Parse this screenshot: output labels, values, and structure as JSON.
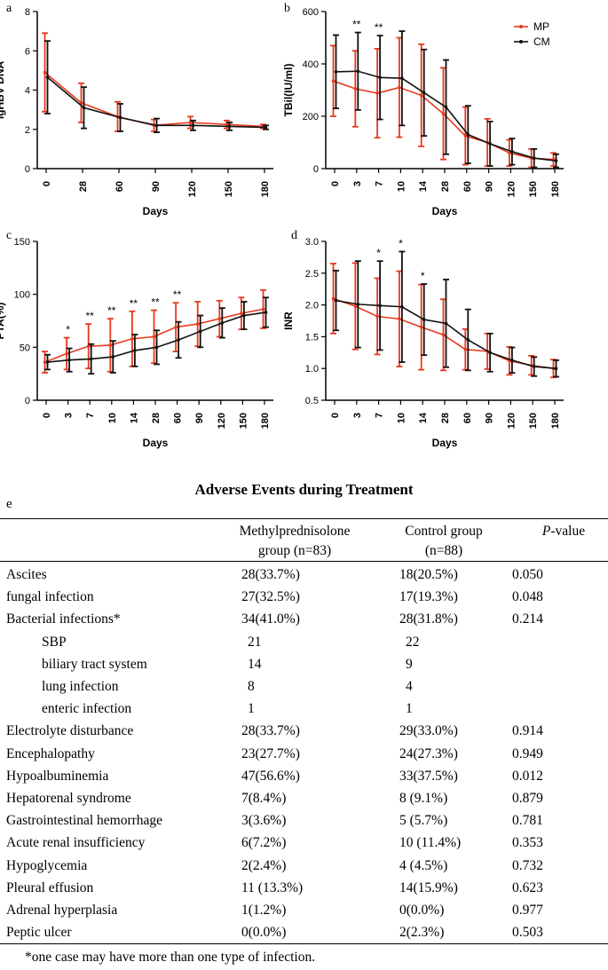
{
  "chart_data": [
    {
      "panel": "a",
      "type": "line",
      "title": "",
      "xlabel": "Days",
      "ylabel": "lgHBV DNA",
      "categories": [
        "0",
        "28",
        "60",
        "90",
        "120",
        "150",
        "180"
      ],
      "ylim": [
        0,
        8
      ],
      "yticks": [
        0,
        2,
        4,
        6,
        8
      ],
      "significance": [
        "",
        "",
        "",
        "",
        "",
        "",
        ""
      ],
      "series": [
        {
          "name": "MP",
          "color": "#e8391d",
          "values": [
            4.9,
            3.35,
            2.65,
            2.2,
            2.35,
            2.25,
            2.15
          ],
          "err": [
            2.0,
            1.0,
            0.75,
            0.3,
            0.3,
            0.2,
            0.1
          ]
        },
        {
          "name": "CM",
          "color": "#111111",
          "values": [
            4.65,
            3.1,
            2.6,
            2.2,
            2.2,
            2.15,
            2.1
          ],
          "err": [
            1.85,
            1.05,
            0.7,
            0.35,
            0.25,
            0.2,
            0.1
          ]
        }
      ]
    },
    {
      "panel": "b",
      "type": "line",
      "title": "",
      "xlabel": "Days",
      "ylabel": "TBil(IU/ml)",
      "categories": [
        "0",
        "3",
        "7",
        "10",
        "14",
        "28",
        "60",
        "90",
        "120",
        "150",
        "180"
      ],
      "ylim": [
        0,
        600
      ],
      "yticks": [
        0,
        200,
        400,
        600
      ],
      "significance": [
        "",
        "**",
        "**",
        "",
        "",
        "",
        "",
        "",
        "",
        "",
        ""
      ],
      "legend": {
        "position": "top-right",
        "entries": [
          "MP",
          "CM"
        ]
      },
      "series": [
        {
          "name": "MP",
          "color": "#e8391d",
          "values": [
            335,
            305,
            288,
            310,
            280,
            210,
            125,
            100,
            60,
            40,
            35
          ],
          "err": [
            135,
            145,
            170,
            190,
            195,
            175,
            110,
            90,
            50,
            35,
            25
          ]
        },
        {
          "name": "CM",
          "color": "#111111",
          "values": [
            370,
            372,
            348,
            345,
            290,
            235,
            130,
            95,
            65,
            40,
            30
          ],
          "err": [
            140,
            148,
            160,
            180,
            165,
            180,
            110,
            85,
            50,
            35,
            25
          ]
        }
      ]
    },
    {
      "panel": "c",
      "type": "line",
      "title": "",
      "xlabel": "Days",
      "ylabel": "PTA(%)",
      "categories": [
        "0",
        "3",
        "7",
        "10",
        "14",
        "28",
        "60",
        "90",
        "120",
        "150",
        "180"
      ],
      "ylim": [
        0,
        150
      ],
      "yticks": [
        0,
        50,
        100,
        150
      ],
      "significance": [
        "",
        "*",
        "**",
        "**",
        "**",
        "**",
        "**",
        "",
        "",
        "",
        ""
      ],
      "series": [
        {
          "name": "MP",
          "color": "#e8391d",
          "values": [
            36,
            44,
            51,
            52,
            58,
            60,
            69,
            72,
            77,
            82,
            86
          ],
          "err": [
            10,
            15,
            21,
            25,
            26,
            25,
            23,
            21,
            17,
            15,
            18
          ]
        },
        {
          "name": "CM",
          "color": "#111111",
          "values": [
            36,
            38,
            39,
            41,
            47,
            50,
            57,
            65,
            73,
            80,
            83
          ],
          "err": [
            7,
            11,
            14,
            15,
            15,
            16,
            17,
            15,
            14,
            13,
            14
          ]
        }
      ]
    },
    {
      "panel": "d",
      "type": "line",
      "title": "",
      "xlabel": "Days",
      "ylabel": "INR",
      "categories": [
        "0",
        "3",
        "7",
        "10",
        "14",
        "28",
        "60",
        "90",
        "120",
        "150",
        "180"
      ],
      "ylim": [
        0.5,
        3.0
      ],
      "yticks": [
        0.5,
        1.0,
        1.5,
        2.0,
        2.5,
        3.0
      ],
      "significance": [
        "",
        "",
        "*",
        "*",
        "*",
        "",
        "",
        "",
        "",
        "",
        ""
      ],
      "series": [
        {
          "name": "MP",
          "color": "#e8391d",
          "values": [
            2.1,
            1.98,
            1.82,
            1.78,
            1.65,
            1.53,
            1.3,
            1.27,
            1.12,
            1.05,
            1.0
          ],
          "err": [
            0.55,
            0.68,
            0.6,
            0.75,
            0.67,
            0.56,
            0.32,
            0.28,
            0.22,
            0.15,
            0.14
          ]
        },
        {
          "name": "CM",
          "color": "#111111",
          "values": [
            2.07,
            2.01,
            1.99,
            1.97,
            1.77,
            1.71,
            1.45,
            1.25,
            1.13,
            1.03,
            1.0
          ],
          "err": [
            0.47,
            0.68,
            0.7,
            0.87,
            0.56,
            0.69,
            0.48,
            0.3,
            0.2,
            0.15,
            0.13
          ]
        }
      ]
    }
  ],
  "table": {
    "panel": "e",
    "title": "Adverse Events during Treatment",
    "headers": {
      "mp_line1": "Methylprednisolone",
      "mp_line2": "group (n=83)",
      "cg_line1": "Control group",
      "cg_line2": "(n=88)",
      "p_prefix": "P",
      "p_suffix": "-value"
    },
    "rows": [
      {
        "label": "Ascites",
        "mp": "28(33.7%)",
        "cg": "18(20.5%)",
        "p": "0.050"
      },
      {
        "label": "fungal infection",
        "mp": "27(32.5%)",
        "cg": "17(19.3%)",
        "p": "0.048"
      },
      {
        "label": "Bacterial infections*",
        "mp": "34(41.0%)",
        "cg": "28(31.8%)",
        "p": "0.214"
      },
      {
        "label": "SBP",
        "mp": "21",
        "cg": "22",
        "p": "",
        "indent": true
      },
      {
        "label": "biliary tract system",
        "mp": "14",
        "cg": "9",
        "p": "",
        "indent": true
      },
      {
        "label": "lung infection",
        "mp": "8",
        "cg": "4",
        "p": "",
        "indent": true
      },
      {
        "label": "enteric infection",
        "mp": "1",
        "cg": "1",
        "p": "",
        "indent": true
      },
      {
        "label": "Electrolyte disturbance",
        "mp": "28(33.7%)",
        "cg": "29(33.0%)",
        "p": "0.914"
      },
      {
        "label": "Encephalopathy",
        "mp": "23(27.7%)",
        "cg": "24(27.3%)",
        "p": "0.949"
      },
      {
        "label": "Hypoalbuminemia",
        "mp": "47(56.6%)",
        "cg": "33(37.5%)",
        "p": "0.012"
      },
      {
        "label": "Hepatorenal syndrome",
        "mp": "7(8.4%)",
        "cg": "8 (9.1%)",
        "p": "0.879"
      },
      {
        "label": "Gastrointestinal hemorrhage",
        "mp": "3(3.6%)",
        "cg": "5 (5.7%)",
        "p": "0.781"
      },
      {
        "label": "Acute renal insufficiency",
        "mp": "6(7.2%)",
        "cg": "10 (11.4%)",
        "p": "0.353"
      },
      {
        "label": "Hypoglycemia",
        "mp": "2(2.4%)",
        "cg": "4 (4.5%)",
        "p": "0.732"
      },
      {
        "label": "Pleural effusion",
        "mp": "11 (13.3%)",
        "cg": "14(15.9%)",
        "p": "0.623"
      },
      {
        "label": "Adrenal hyperplasia",
        "mp": "1(1.2%)",
        "cg": "0(0.0%)",
        "p": "0.977"
      },
      {
        "label": "Peptic ulcer",
        "mp": "0(0.0%)",
        "cg": "2(2.3%)",
        "p": "0.503"
      }
    ],
    "footnote": "*one case may have more than one type of infection."
  }
}
